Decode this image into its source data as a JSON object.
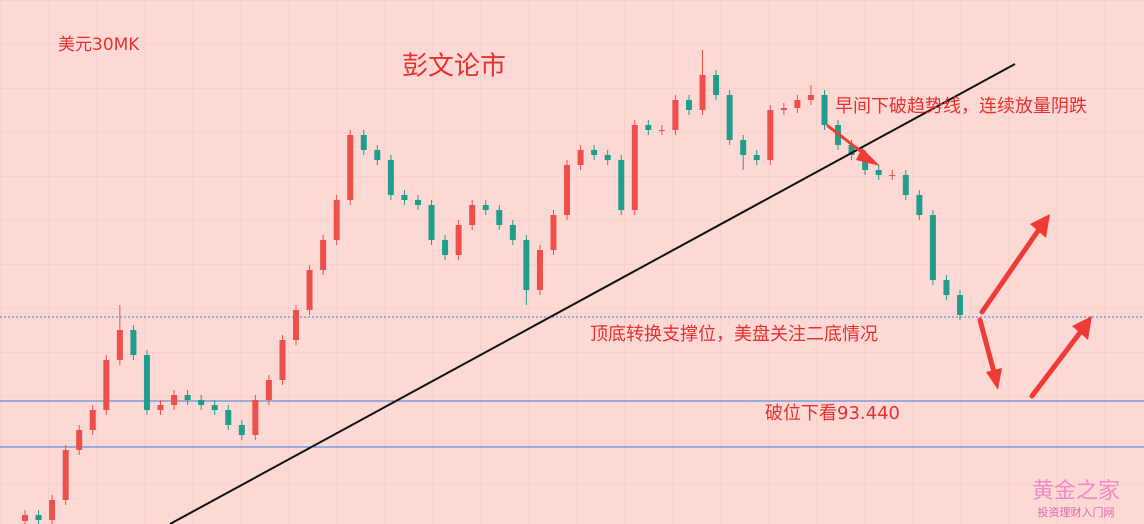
{
  "chart_data": {
    "type": "candlestick",
    "title": "彭文论市",
    "subtitle": "美元30MK",
    "annotations": [
      "早间下破趋势线，连续放量阴跌",
      "顶底转换支撑位，美盘关注二底情况",
      "破位下看93.440"
    ],
    "watermark": "黄金之家",
    "watermark_sub": "投资理财入门网",
    "up_color": "#ef4f4a",
    "down_color": "#1f9e8c",
    "level_color": "#3d7fd8",
    "ylim": [
      93.194,
      94.242
    ],
    "levels": [
      93.608,
      93.44,
      93.348
    ],
    "open": [
      93.2,
      93.212,
      93.202,
      93.242,
      93.342,
      93.382,
      93.422,
      93.522,
      93.582,
      93.532,
      93.422,
      93.432,
      93.452,
      93.442,
      93.432,
      93.422,
      93.392,
      93.372,
      93.442,
      93.482,
      93.562,
      93.622,
      93.702,
      93.762,
      93.842,
      93.972,
      93.942,
      93.922,
      93.852,
      93.842,
      93.832,
      93.762,
      93.732,
      93.792,
      93.832,
      93.822,
      93.792,
      93.762,
      93.662,
      93.742,
      93.812,
      93.912,
      93.942,
      93.932,
      93.922,
      93.822,
      93.992,
      93.982,
      93.982,
      94.042,
      94.022,
      94.092,
      94.052,
      93.962,
      93.932,
      93.922,
      94.022,
      94.026,
      94.042,
      94.052,
      93.992,
      93.952,
      93.932,
      93.902,
      93.892,
      93.892,
      93.852,
      93.812,
      93.682,
      93.652
    ],
    "high": [
      93.222,
      93.222,
      93.252,
      93.352,
      93.392,
      93.432,
      93.532,
      93.632,
      93.592,
      93.542,
      93.442,
      93.462,
      93.462,
      93.452,
      93.442,
      93.432,
      93.402,
      93.452,
      93.492,
      93.572,
      93.632,
      93.712,
      93.772,
      93.852,
      93.982,
      93.982,
      93.952,
      93.932,
      93.862,
      93.852,
      93.842,
      93.772,
      93.802,
      93.842,
      93.842,
      93.832,
      93.802,
      93.772,
      93.752,
      93.822,
      93.922,
      93.952,
      93.952,
      93.942,
      93.932,
      94.002,
      94.002,
      93.992,
      94.052,
      94.052,
      94.142,
      94.102,
      94.062,
      93.972,
      93.942,
      94.032,
      94.036,
      94.052,
      94.072,
      94.062,
      94.002,
      93.962,
      93.942,
      93.912,
      93.902,
      93.902,
      93.862,
      93.822,
      93.692,
      93.662
    ],
    "low": [
      93.19,
      93.192,
      93.192,
      93.232,
      93.332,
      93.372,
      93.412,
      93.512,
      93.522,
      93.412,
      93.412,
      93.422,
      93.432,
      93.422,
      93.412,
      93.382,
      93.362,
      93.362,
      93.432,
      93.472,
      93.552,
      93.612,
      93.692,
      93.752,
      93.832,
      93.932,
      93.912,
      93.842,
      93.832,
      93.822,
      93.752,
      93.722,
      93.722,
      93.782,
      93.812,
      93.782,
      93.752,
      93.632,
      93.652,
      93.732,
      93.802,
      93.902,
      93.922,
      93.912,
      93.812,
      93.812,
      93.972,
      93.972,
      93.972,
      94.012,
      94.012,
      94.042,
      93.952,
      93.902,
      93.912,
      93.912,
      94.012,
      94.016,
      94.032,
      93.982,
      93.942,
      93.922,
      93.892,
      93.882,
      93.882,
      93.842,
      93.802,
      93.672,
      93.642,
      93.602
    ],
    "close": [
      93.212,
      93.202,
      93.242,
      93.342,
      93.382,
      93.422,
      93.522,
      93.582,
      93.532,
      93.422,
      93.432,
      93.452,
      93.442,
      93.432,
      93.422,
      93.392,
      93.372,
      93.442,
      93.482,
      93.562,
      93.622,
      93.702,
      93.762,
      93.842,
      93.972,
      93.942,
      93.922,
      93.852,
      93.842,
      93.832,
      93.762,
      93.732,
      93.792,
      93.832,
      93.822,
      93.792,
      93.762,
      93.662,
      93.742,
      93.812,
      93.912,
      93.942,
      93.932,
      93.922,
      93.822,
      93.992,
      93.982,
      93.982,
      94.042,
      94.022,
      94.092,
      94.052,
      93.962,
      93.932,
      93.922,
      94.022,
      94.026,
      94.042,
      94.052,
      93.992,
      93.952,
      93.932,
      93.902,
      93.892,
      93.892,
      93.852,
      93.812,
      93.682,
      93.652,
      93.612
    ]
  }
}
